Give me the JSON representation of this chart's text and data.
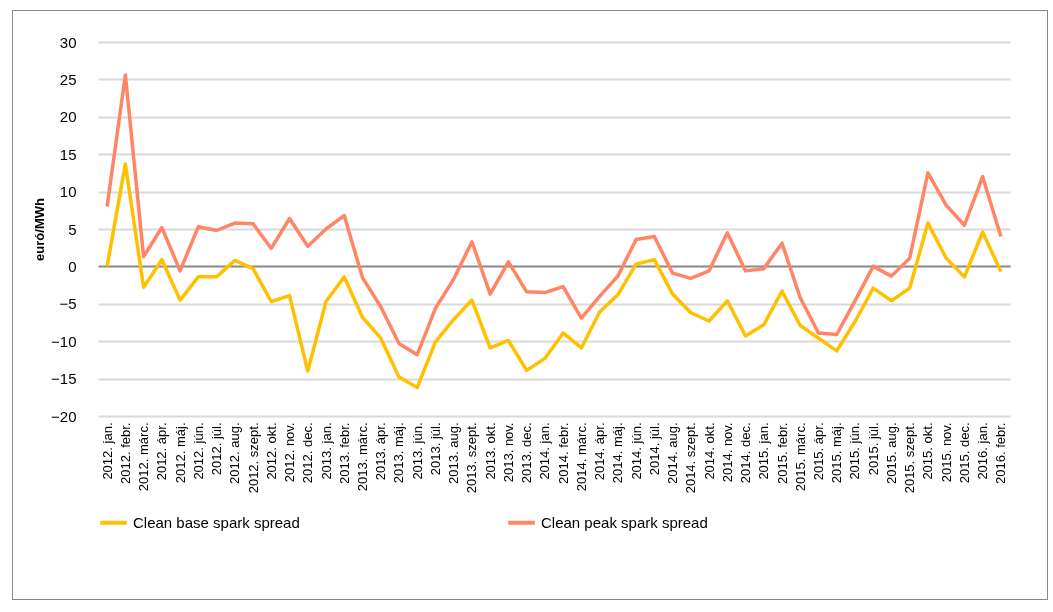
{
  "chart_data": {
    "type": "line",
    "ylabel": "euró/MWh",
    "categories": [
      "2012. jan.",
      "2012. febr.",
      "2012. márc.",
      "2012. ápr.",
      "2012. máj.",
      "2012. jún.",
      "2012. júl.",
      "2012. aug.",
      "2012. szept.",
      "2012. okt.",
      "2012. nov.",
      "2012. dec.",
      "2013. jan.",
      "2013. febr.",
      "2013. márc.",
      "2013. ápr.",
      "2013. máj.",
      "2013. jún.",
      "2013. júl.",
      "2013. aug.",
      "2013. szept.",
      "2013. okt.",
      "2013. nov.",
      "2013. dec.",
      "2014. jan.",
      "2014. febr.",
      "2014. márc.",
      "2014. ápr.",
      "2014. máj.",
      "2014. jún.",
      "2014. júl.",
      "2014. aug.",
      "2014. szept.",
      "2014. okt.",
      "2014. nov.",
      "2014. dec.",
      "2015. jan.",
      "2015. febr.",
      "2015. márc.",
      "2015. ápr.",
      "2015. máj.",
      "2015. jún.",
      "2015. júl.",
      "2015. aug.",
      "2015. szept.",
      "2015. okt.",
      "2015. nov.",
      "2015. dec.",
      "2016. jan.",
      "2016. febr."
    ],
    "series": [
      {
        "name": "Clean base spark spread",
        "color": "#ffc000",
        "values": [
          0,
          13.7,
          -2.8,
          0.9,
          -4.5,
          -1.4,
          -1.4,
          0.8,
          -0.3,
          -4.7,
          -3.9,
          -14,
          -4.7,
          -1.4,
          -6.8,
          -9.6,
          -14.8,
          -16.2,
          -10.1,
          -7.1,
          -4.5,
          -10.9,
          -9.9,
          -13.9,
          -12.3,
          -8.9,
          -10.9,
          -6.1,
          -3.8,
          0.3,
          0.9,
          -3.7,
          -6.2,
          -7.3,
          -4.6,
          -9.3,
          -7.8,
          -3.3,
          -7.9,
          -9.6,
          -11.3,
          -7.4,
          -2.9,
          -4.6,
          -2.9,
          5.8,
          1.1,
          -1.4,
          4.6,
          -0.7
        ]
      },
      {
        "name": "Clean peak spark spread",
        "color": "#ff8566",
        "values": [
          8,
          25.6,
          1.3,
          5.2,
          -0.6,
          5.3,
          4.8,
          5.8,
          5.7,
          2.4,
          6.4,
          2.7,
          5,
          6.8,
          -1.5,
          -5.4,
          -10.3,
          -11.8,
          -5.6,
          -1.7,
          3.3,
          -3.7,
          0.6,
          -3.4,
          -3.5,
          -2.7,
          -6.9,
          -4,
          -1.3,
          3.6,
          4,
          -0.9,
          -1.6,
          -0.6,
          4.5,
          -0.6,
          -0.3,
          3.1,
          -4.2,
          -8.9,
          -9.1,
          -4.6,
          0,
          -1.3,
          1.1,
          12.5,
          8.2,
          5.5,
          12,
          4
        ]
      }
    ],
    "ylim": [
      -20,
      30
    ],
    "yticks": [
      -20,
      -15,
      -10,
      -5,
      0,
      5,
      10,
      15,
      20,
      25,
      30
    ],
    "grid": "y",
    "legend": "bottom"
  }
}
